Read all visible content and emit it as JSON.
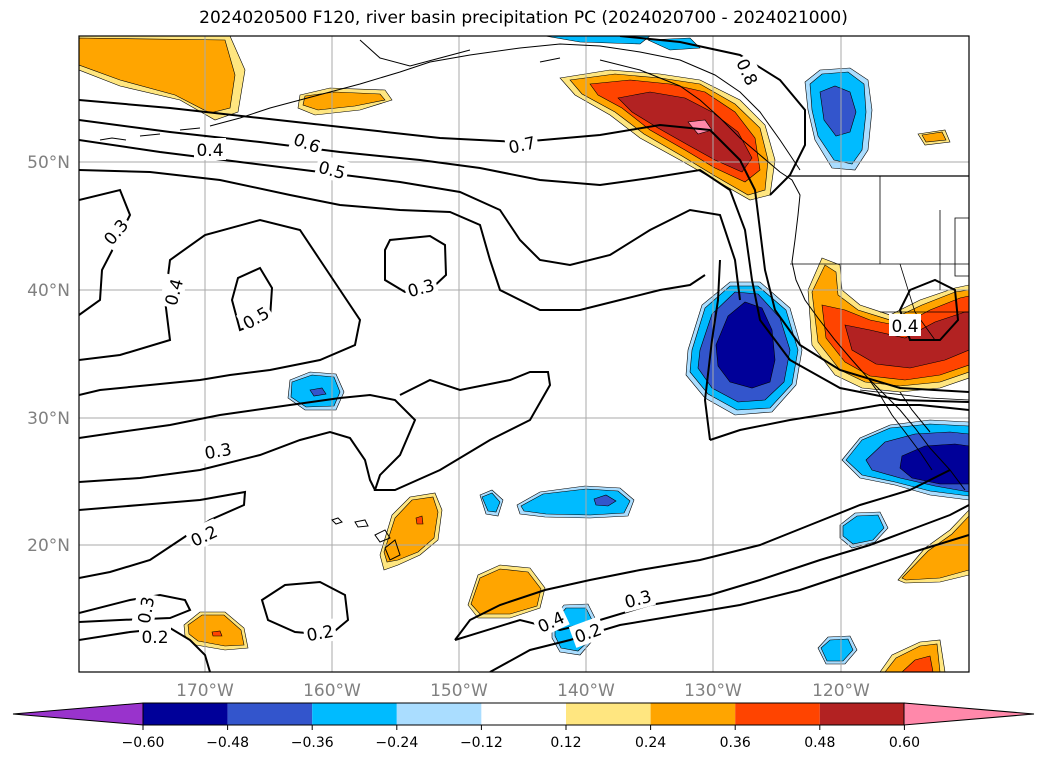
{
  "title": "2024020500 F120, river basin precipitation PC (2024020700 - 2024021000)",
  "lat_labels": [
    {
      "text": "50°N",
      "lat": 50
    },
    {
      "text": "40°N",
      "lat": 40
    },
    {
      "text": "30°N",
      "lat": 30
    },
    {
      "text": "20°N",
      "lat": 20
    }
  ],
  "lon_labels": [
    {
      "text": "170°W",
      "lon": -170
    },
    {
      "text": "160°W",
      "lon": -160
    },
    {
      "text": "150°W",
      "lon": -150
    },
    {
      "text": "140°W",
      "lon": -140
    },
    {
      "text": "130°W",
      "lon": -130
    },
    {
      "text": "120°W",
      "lon": -120
    }
  ],
  "colorbar": {
    "colors": [
      "#9933cc",
      "#000099",
      "#3355cc",
      "#00bbff",
      "#aaddff",
      "#ffffff",
      "#ffe680",
      "#ffa500",
      "#ff4400",
      "#b22222",
      "#ff88aa"
    ],
    "labels": [
      "−0.60",
      "−0.48",
      "−0.36",
      "−0.24",
      "−0.12",
      "0.12",
      "0.24",
      "0.36",
      "0.48",
      "0.60"
    ]
  },
  "contour_labels": [
    "0.4",
    "0.6",
    "0.5",
    "0.7",
    "0.8",
    "0.3",
    "0.4",
    "0.5",
    "0.3",
    "0.4",
    "0.3",
    "0.2",
    "0.3",
    "0.2",
    "0.2",
    "0.4",
    "0.3",
    "0.2"
  ]
}
